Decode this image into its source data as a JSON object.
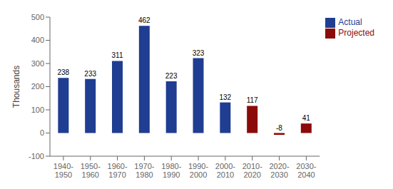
{
  "chart_data": {
    "type": "bar",
    "categories": [
      "1940-\n1950",
      "1950-\n1960",
      "1960-\n1970",
      "1970-\n1980",
      "1980-\n1990",
      "1990-\n2000",
      "2000-\n2010",
      "2010-\n2020",
      "2020-\n2030",
      "2030-\n2040"
    ],
    "series": [
      {
        "name": "Actual",
        "color": "#1f3d91",
        "values": [
          238,
          233,
          311,
          462,
          223,
          323,
          132,
          null,
          null,
          null
        ]
      },
      {
        "name": "Projected",
        "color": "#8b0a0a",
        "values": [
          null,
          null,
          null,
          null,
          null,
          null,
          null,
          117,
          -8,
          41
        ]
      }
    ],
    "ylabel": "Thousands",
    "ylim": [
      -100,
      500
    ],
    "yticks": [
      -100,
      0,
      100,
      200,
      300,
      400,
      500
    ],
    "data_labels": true,
    "legend": "upper right",
    "grid": false
  }
}
